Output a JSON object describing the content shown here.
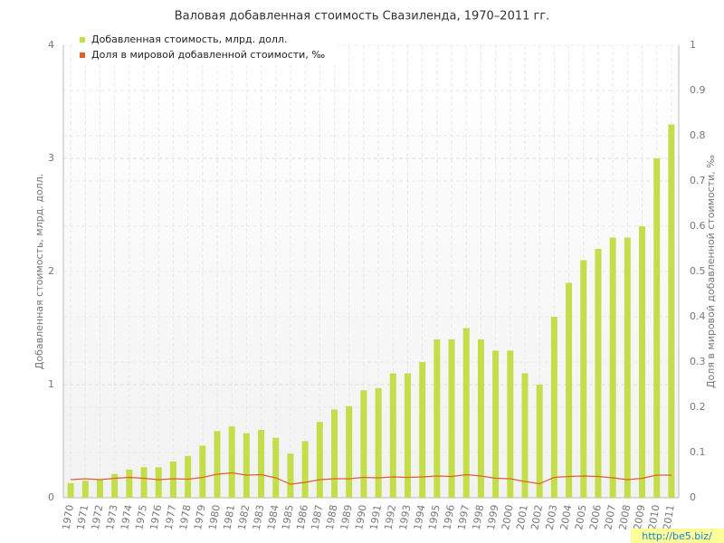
{
  "chart_data": {
    "type": "bar_line",
    "title": "Валовая добавленная стоимость Свазиленда, 1970–2011 гг.",
    "y_label": "Добавленная стоимость, млрд. долл.",
    "y2_label": "Доля в мировой добавленной стоимости, ‰",
    "watermark": "http://be5.biz/",
    "categories": [
      "1970",
      "1971",
      "1972",
      "1973",
      "1974",
      "1975",
      "1976",
      "1977",
      "1978",
      "1979",
      "1980",
      "1981",
      "1982",
      "1983",
      "1984",
      "1985",
      "1986",
      "1987",
      "1988",
      "1989",
      "1990",
      "1991",
      "1992",
      "1993",
      "1994",
      "1995",
      "1996",
      "1997",
      "1998",
      "1999",
      "2000",
      "2001",
      "2002",
      "2003",
      "2004",
      "2005",
      "2006",
      "2007",
      "2008",
      "2009",
      "2010",
      "2011"
    ],
    "series": [
      {
        "name": "Добавленная стоимость, млрд. долл.",
        "color": "#c3de4a",
        "type": "bar",
        "values": [
          0.13,
          0.15,
          0.16,
          0.21,
          0.25,
          0.27,
          0.27,
          0.32,
          0.37,
          0.46,
          0.59,
          0.63,
          0.57,
          0.6,
          0.53,
          0.39,
          0.5,
          0.67,
          0.78,
          0.81,
          0.95,
          0.97,
          1.1,
          1.1,
          1.2,
          1.4,
          1.4,
          1.5,
          1.4,
          1.3,
          1.3,
          1.1,
          1.0,
          1.6,
          1.9,
          2.1,
          2.2,
          2.3,
          2.3,
          2.4,
          3.0,
          3.3
        ]
      },
      {
        "name": "Доля в мировой добавленной стоимости, ‰",
        "color": "#e0602a",
        "type": "line",
        "axis": "y2",
        "values": [
          0.04,
          0.042,
          0.04,
          0.043,
          0.045,
          0.043,
          0.04,
          0.042,
          0.041,
          0.045,
          0.052,
          0.055,
          0.05,
          0.051,
          0.044,
          0.03,
          0.034,
          0.04,
          0.042,
          0.042,
          0.045,
          0.044,
          0.046,
          0.045,
          0.046,
          0.048,
          0.047,
          0.051,
          0.048,
          0.043,
          0.042,
          0.036,
          0.031,
          0.045,
          0.047,
          0.048,
          0.047,
          0.044,
          0.04,
          0.043,
          0.05,
          0.05
        ]
      }
    ],
    "ylim": [
      0,
      4
    ],
    "yticks": [
      0,
      1,
      2,
      3,
      4
    ],
    "y2lim": [
      0,
      1
    ],
    "y2ticks": [
      0,
      0.1,
      0.2,
      0.3,
      0.4,
      0.5,
      0.6,
      0.7,
      0.8,
      0.9,
      1
    ],
    "grid": true,
    "legend": "top-left"
  }
}
